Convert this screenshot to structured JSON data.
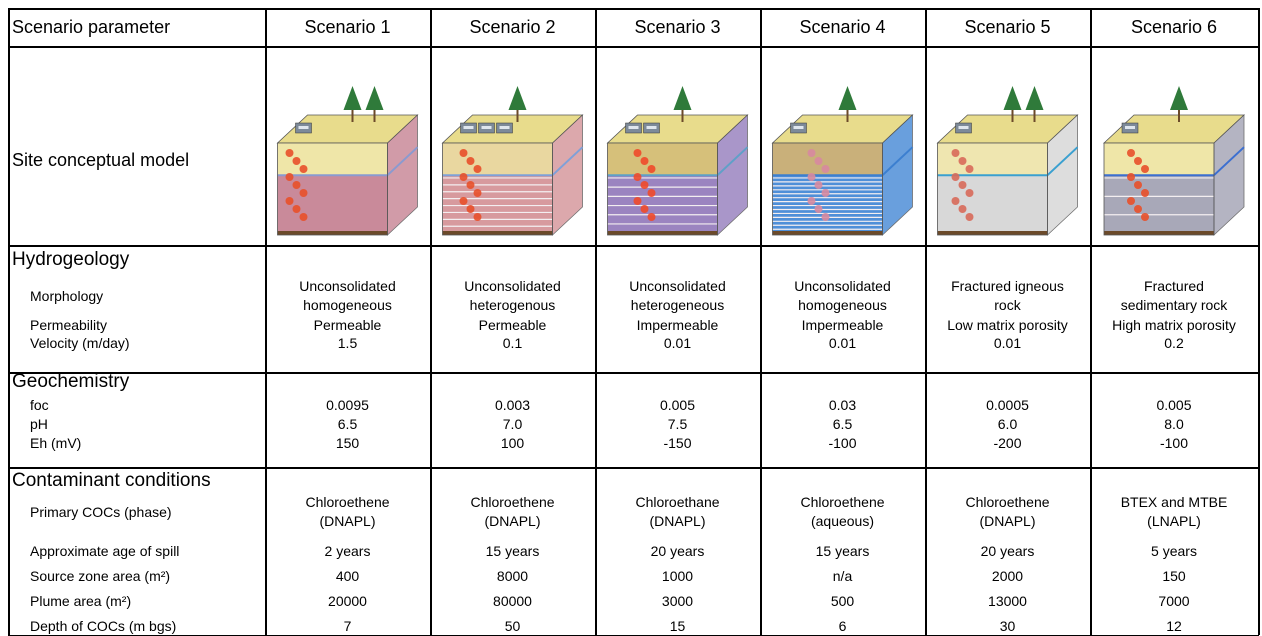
{
  "header": {
    "label": "Scenario parameter",
    "scenarios": [
      "Scenario 1",
      "Scenario 2",
      "Scenario 3",
      "Scenario 4",
      "Scenario 5",
      "Scenario 6"
    ]
  },
  "model_row": {
    "label": "Site conceptual model"
  },
  "sections": [
    {
      "title": "Hydrogeology",
      "rows": [
        {
          "label": "Morphology",
          "values": [
            [
              "Unconsolidated",
              "homogeneous"
            ],
            [
              "Unconsolidated",
              "heterogenous"
            ],
            [
              "Unconsolidated",
              "heterogeneous"
            ],
            [
              "Unconsolidated",
              "homogeneous"
            ],
            [
              "Fractured igneous",
              "rock"
            ],
            [
              "Fractured",
              "sedimentary rock"
            ]
          ]
        },
        {
          "label": "Permeability",
          "values": [
            "Permeable",
            "Permeable",
            "Impermeable",
            "Impermeable",
            "Low matrix porosity",
            "High matrix porosity"
          ]
        },
        {
          "label": "Velocity (m/day)",
          "values": [
            "1.5",
            "0.1",
            "0.01",
            "0.01",
            "0.01",
            "0.2"
          ]
        }
      ]
    },
    {
      "title": "Geochemistry",
      "rows": [
        {
          "label": "foc",
          "values": [
            "0.0095",
            "0.003",
            "0.005",
            "0.03",
            "0.0005",
            "0.005"
          ]
        },
        {
          "label": "pH",
          "values": [
            "6.5",
            "7.0",
            "7.5",
            "6.5",
            "6.0",
            "8.0"
          ]
        },
        {
          "label": "Eh (mV)",
          "values": [
            "150",
            "100",
            "-150",
            "-100",
            "-200",
            "-100"
          ]
        }
      ]
    },
    {
      "title": "Contaminant conditions",
      "rows": [
        {
          "label": "Primary COCs (phase)",
          "values": [
            [
              "Chloroethene",
              "(DNAPL)"
            ],
            [
              "Chloroethene",
              "(DNAPL)"
            ],
            [
              "Chloroethane",
              "(DNAPL)"
            ],
            [
              "Chloroethene",
              "(aqueous)"
            ],
            [
              "Chloroethene",
              "(DNAPL)"
            ],
            [
              "BTEX and MTBE",
              "(LNAPL)"
            ]
          ]
        },
        {
          "label": "Approximate age of spill",
          "values": [
            "2 years",
            "15 years",
            "20 years",
            "15 years",
            "20 years",
            "5 years"
          ]
        },
        {
          "label": "Source zone area (m²)",
          "values": [
            "400",
            "8000",
            "1000",
            "n/a",
            "2000",
            "150"
          ]
        },
        {
          "label": "Plume area (m²)",
          "values": [
            "20000",
            "80000",
            "3000",
            "500",
            "13000",
            "7000"
          ]
        },
        {
          "label": "Depth of COCs (m bgs)",
          "values": [
            "7",
            "50",
            "15",
            "6",
            "30",
            "12"
          ]
        }
      ]
    }
  ]
}
